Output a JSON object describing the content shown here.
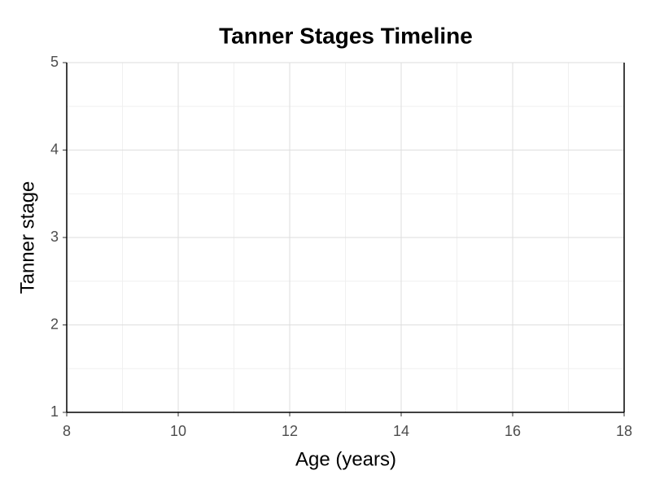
{
  "chart_data": {
    "type": "line",
    "title": "Tanner Stages Timeline",
    "x_label": "Age (years)",
    "y_label": "Tanner stage",
    "series": [],
    "xlim": [
      8,
      18
    ],
    "xticks": [
      8,
      10,
      12,
      14,
      16,
      18
    ],
    "ylim": [
      1,
      5
    ],
    "yticks": [
      1,
      2,
      3,
      4,
      5
    ],
    "grid": true,
    "minor_grid": true
  }
}
